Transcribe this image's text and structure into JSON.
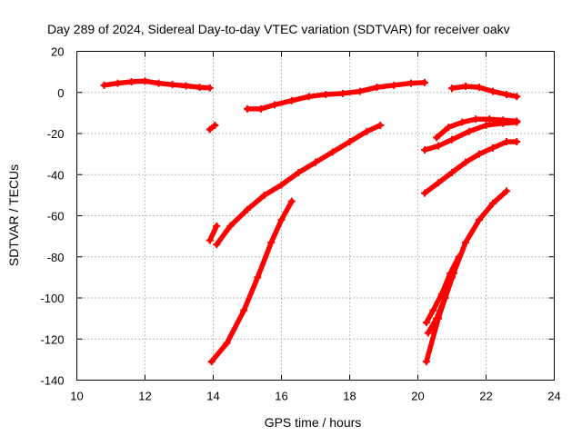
{
  "chart_data": {
    "type": "scatter",
    "title": "Day 289 of 2024, Sidereal Day-to-day VTEC variation (SDTVAR) for receiver oakv",
    "xlabel": "GPS time / hours",
    "ylabel": "SDTVAR / TECUs",
    "xlim": [
      10,
      24
    ],
    "ylim": [
      -140,
      20
    ],
    "xticks": [
      10,
      12,
      14,
      16,
      18,
      20,
      22,
      24
    ],
    "yticks": [
      -140,
      -120,
      -100,
      -80,
      -60,
      -40,
      -20,
      0,
      20
    ],
    "grid": true,
    "legend": "none",
    "color": "#ff0000",
    "series": [
      {
        "x": [
          10.8,
          11.2,
          11.6,
          12.0,
          12.4,
          12.8,
          13.2,
          13.6,
          13.9
        ],
        "y": [
          3.5,
          4.5,
          5.2,
          5.5,
          4.5,
          3.8,
          3.2,
          2.5,
          2.2
        ]
      },
      {
        "x": [
          13.9,
          14.05
        ],
        "y": [
          -18,
          -16
        ]
      },
      {
        "x": [
          13.9,
          14.1
        ],
        "y": [
          -72,
          -65
        ]
      },
      {
        "x": [
          13.95,
          14.4,
          14.9,
          15.3,
          15.7,
          16.0,
          16.3
        ],
        "y": [
          -131,
          -122,
          -106,
          -90,
          -73,
          -62,
          -53
        ]
      },
      {
        "x": [
          14.1,
          14.5,
          15.0,
          15.5,
          16.0,
          16.5,
          17.0,
          17.5,
          18.0,
          18.5,
          18.9
        ],
        "y": [
          -74,
          -65,
          -57,
          -50,
          -45,
          -39,
          -34,
          -29,
          -24,
          -19,
          -16
        ]
      },
      {
        "x": [
          15.0,
          15.4,
          15.8,
          16.3,
          16.8,
          17.3,
          17.8,
          18.3,
          18.8,
          19.3,
          19.8,
          20.2
        ],
        "y": [
          -8,
          -8,
          -6,
          -4,
          -2,
          -1,
          -0.5,
          0.5,
          2.5,
          3.5,
          4.5,
          4.8
        ]
      },
      {
        "x": [
          20.2,
          20.6,
          21.0,
          21.4,
          21.8,
          22.2,
          22.6,
          22.9
        ],
        "y": [
          -49,
          -44,
          -39,
          -34,
          -30,
          -27,
          -24,
          -24
        ]
      },
      {
        "x": [
          20.2,
          20.6,
          21.0,
          21.5,
          22.0,
          22.5,
          22.9
        ],
        "y": [
          -28,
          -26,
          -23,
          -19,
          -16,
          -15,
          -14.5
        ]
      },
      {
        "x": [
          20.55,
          20.9,
          21.3,
          21.7,
          22.1,
          22.5,
          22.9
        ],
        "y": [
          -22,
          -17,
          -14.5,
          -13,
          -13,
          -13.5,
          -14
        ]
      },
      {
        "x": [
          21.0,
          21.4,
          21.8,
          22.2,
          22.6,
          22.9
        ],
        "y": [
          2,
          3,
          2.5,
          0.5,
          -1,
          -2
        ]
      },
      {
        "x": [
          20.25,
          20.6,
          21.0,
          21.4,
          21.8,
          22.2,
          22.6
        ],
        "y": [
          -131,
          -110,
          -90,
          -73,
          -62,
          -54,
          -48
        ]
      },
      {
        "x": [
          20.25,
          20.45,
          20.7,
          20.95,
          21.2
        ],
        "y": [
          -112,
          -106,
          -98,
          -88,
          -80
        ]
      },
      {
        "x": [
          20.3,
          20.55,
          20.8,
          21.05
        ],
        "y": [
          -117,
          -110,
          -100,
          -88
        ]
      }
    ]
  }
}
